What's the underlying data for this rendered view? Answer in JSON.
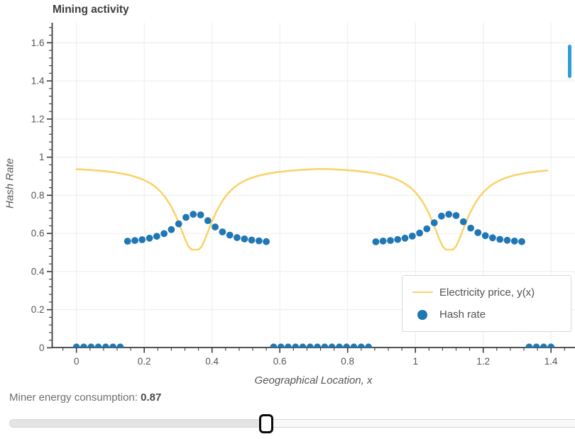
{
  "chart_data": {
    "type": "line+scatter",
    "title": "Mining activity",
    "xlabel": "Geographical Location, x",
    "ylabel": "Hash Rate",
    "xlim": [
      -0.072,
      1.47
    ],
    "ylim": [
      0,
      1.7
    ],
    "grid": true,
    "x_ticks": {
      "values": [
        0,
        0.2,
        0.4,
        0.6,
        0.8,
        1.0,
        1.2,
        1.4
      ],
      "labels": [
        "0",
        "0.2",
        "0.4",
        "0.6",
        "0.8",
        "1",
        "1.2",
        "1.4"
      ]
    },
    "y_ticks": {
      "values": [
        0,
        0.2,
        0.4,
        0.6,
        0.8,
        1.0,
        1.2,
        1.4,
        1.6
      ],
      "labels": [
        "0",
        "0.2",
        "0.4",
        "0.6",
        "0.8",
        "1",
        "1.2",
        "1.4",
        "1.6"
      ]
    },
    "minor_tick_step": 0.04,
    "legend": {
      "position": "lower right",
      "entries": [
        {
          "label": "Electricity price, y(x)",
          "marker": "line",
          "color": "#f9d36c"
        },
        {
          "label": "Hash rate",
          "marker": "circle",
          "color": "#1f77b4"
        }
      ]
    },
    "series": [
      {
        "name": "Electricity price, y(x)",
        "type": "line",
        "color": "#f9d36c",
        "x_start": 0.0,
        "x_step": 0.01,
        "y": [
          0.937,
          0.936,
          0.935,
          0.934,
          0.933,
          0.931,
          0.93,
          0.929,
          0.927,
          0.925,
          0.923,
          0.921,
          0.918,
          0.915,
          0.912,
          0.908,
          0.904,
          0.899,
          0.893,
          0.887,
          0.879,
          0.87,
          0.86,
          0.848,
          0.833,
          0.815,
          0.794,
          0.769,
          0.739,
          0.704,
          0.663,
          0.618,
          0.573,
          0.532,
          0.515,
          0.515,
          0.515,
          0.532,
          0.573,
          0.618,
          0.663,
          0.704,
          0.739,
          0.769,
          0.794,
          0.815,
          0.833,
          0.848,
          0.86,
          0.87,
          0.879,
          0.887,
          0.893,
          0.899,
          0.904,
          0.908,
          0.912,
          0.915,
          0.918,
          0.921,
          0.923,
          0.925,
          0.927,
          0.929,
          0.93,
          0.931,
          0.933,
          0.934,
          0.935,
          0.936,
          0.937,
          0.938,
          0.938,
          0.938,
          0.938,
          0.937,
          0.936,
          0.935,
          0.934,
          0.933,
          0.931,
          0.93,
          0.929,
          0.927,
          0.925,
          0.923,
          0.921,
          0.918,
          0.915,
          0.912,
          0.908,
          0.904,
          0.899,
          0.893,
          0.887,
          0.879,
          0.87,
          0.86,
          0.848,
          0.833,
          0.815,
          0.794,
          0.769,
          0.739,
          0.704,
          0.663,
          0.618,
          0.573,
          0.532,
          0.515,
          0.515,
          0.515,
          0.532,
          0.573,
          0.618,
          0.663,
          0.704,
          0.739,
          0.769,
          0.794,
          0.815,
          0.833,
          0.848,
          0.86,
          0.87,
          0.879,
          0.887,
          0.893,
          0.899,
          0.904,
          0.908,
          0.912,
          0.915,
          0.918,
          0.921,
          0.923,
          0.925,
          0.927,
          0.929,
          0.93
        ]
      },
      {
        "name": "Hash rate",
        "type": "scatter",
        "color": "#1f77b4",
        "x": [
          0.0,
          0.0215,
          0.0431,
          0.0646,
          0.0862,
          0.1077,
          0.1292,
          0.1508,
          0.1723,
          0.1938,
          0.2154,
          0.2369,
          0.2585,
          0.28,
          0.3015,
          0.3231,
          0.3446,
          0.3662,
          0.3877,
          0.4092,
          0.4308,
          0.4523,
          0.4738,
          0.4954,
          0.5169,
          0.5385,
          0.56,
          0.5815,
          0.6031,
          0.6246,
          0.6462,
          0.6677,
          0.6892,
          0.7108,
          0.7323,
          0.7538,
          0.7754,
          0.7969,
          0.8185,
          0.84,
          0.8615,
          0.8831,
          0.9046,
          0.9262,
          0.9477,
          0.9692,
          0.9908,
          1.0123,
          1.0338,
          1.0554,
          1.0769,
          1.0985,
          1.12,
          1.1415,
          1.1631,
          1.1846,
          1.2062,
          1.2277,
          1.2492,
          1.2708,
          1.2923,
          1.3138,
          1.3354,
          1.3569,
          1.3785,
          1.4
        ],
        "y": [
          0.004,
          0.004,
          0.004,
          0.004,
          0.004,
          0.004,
          0.004,
          0.559,
          0.563,
          0.567,
          0.575,
          0.585,
          0.599,
          0.62,
          0.65,
          0.684,
          0.7,
          0.697,
          0.667,
          0.634,
          0.608,
          0.591,
          0.578,
          0.571,
          0.565,
          0.561,
          0.557,
          0.004,
          0.004,
          0.004,
          0.004,
          0.004,
          0.004,
          0.004,
          0.004,
          0.004,
          0.004,
          0.004,
          0.004,
          0.004,
          0.004,
          0.556,
          0.56,
          0.563,
          0.568,
          0.575,
          0.586,
          0.602,
          0.624,
          0.656,
          0.691,
          0.7,
          0.694,
          0.661,
          0.628,
          0.604,
          0.588,
          0.577,
          0.569,
          0.564,
          0.56,
          0.557,
          0.004,
          0.004,
          0.004,
          0.004
        ]
      }
    ]
  },
  "controls": {
    "label": "Miner energy consumption:",
    "value": "0.87",
    "fraction": 0.4548
  },
  "scrollbar": {
    "color": "#2d9fd8"
  }
}
